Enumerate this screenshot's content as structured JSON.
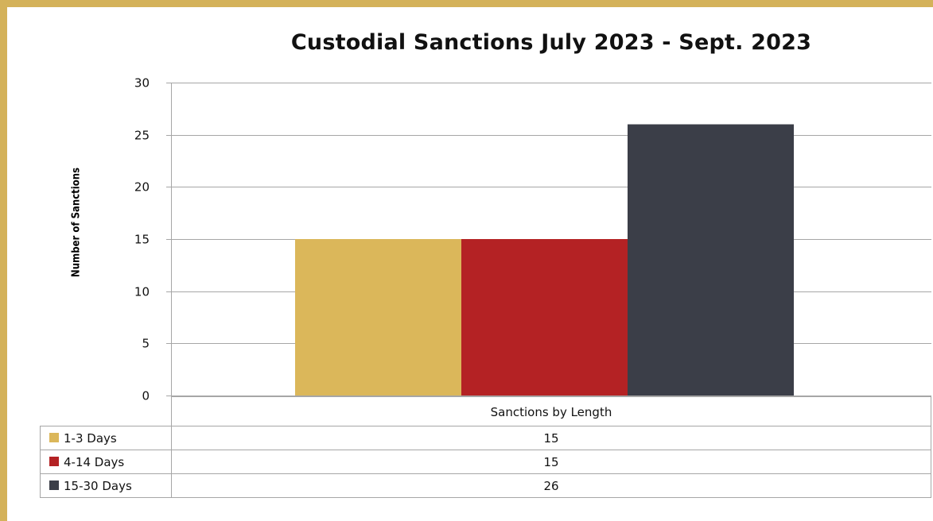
{
  "chart_data": {
    "type": "bar",
    "title": "Custodial  Sanctions  July 2023 - Sept. 2023",
    "xlabel": "Sanctions by Length",
    "ylabel": "Number of Sanctions",
    "ylim": [
      0,
      30
    ],
    "yticks": [
      "0",
      "5",
      "10",
      "15",
      "20",
      "25",
      "30"
    ],
    "grid": true,
    "categories": [
      "Sanctions by Length"
    ],
    "series": [
      {
        "name": "1-3 Days",
        "values": [
          15
        ],
        "color": "#DBB75A"
      },
      {
        "name": "4-14 Days",
        "values": [
          15
        ],
        "color": "#B42224"
      },
      {
        "name": "15-30 Days",
        "values": [
          26
        ],
        "color": "#3B3E48"
      }
    ],
    "data_table": {
      "header": "Sanctions by Length",
      "rows": [
        {
          "label": "1-3 Days",
          "value": "15"
        },
        {
          "label": "4-14 Days",
          "value": "15"
        },
        {
          "label": "15-30 Days",
          "value": "26"
        }
      ]
    }
  },
  "colors": {
    "border": "#D4B25A",
    "grid": "#A6A6A6"
  }
}
